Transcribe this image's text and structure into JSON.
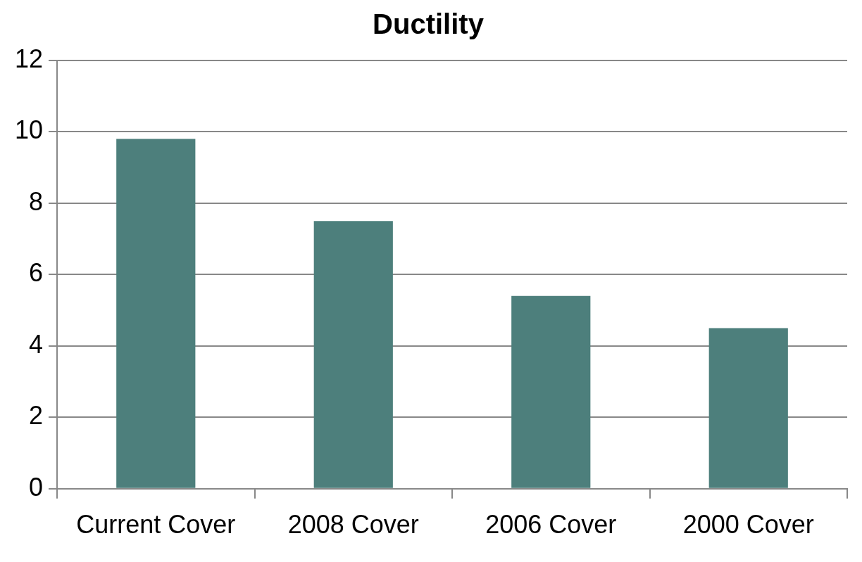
{
  "chart_data": {
    "type": "bar",
    "title": "Ductility",
    "categories": [
      "Current Cover",
      "2008 Cover",
      "2006 Cover",
      "2000 Cover"
    ],
    "values": [
      9.8,
      7.5,
      5.4,
      4.5
    ],
    "color": "#4d7f7c",
    "ylim": [
      0,
      12
    ],
    "yticks": [
      0,
      2,
      4,
      6,
      8,
      10,
      12
    ],
    "grid": "y",
    "legend": false
  }
}
